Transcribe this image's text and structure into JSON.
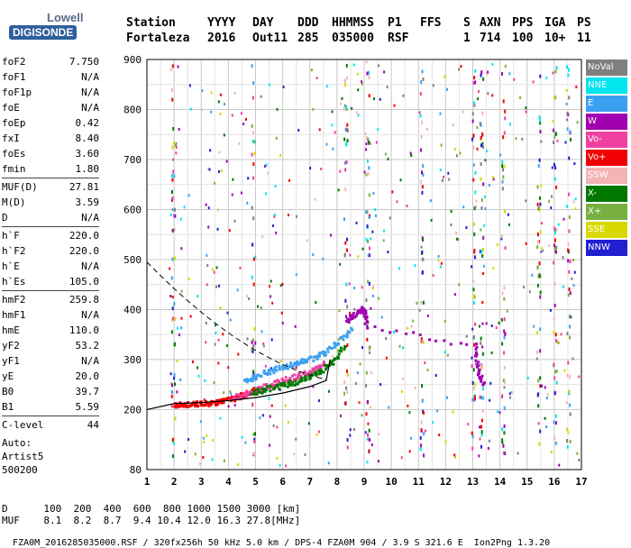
{
  "logo": {
    "line1": "Lowell",
    "line2": "DIGISONDE"
  },
  "header": {
    "labels": [
      "Station",
      "YYYY",
      "DAY",
      "DDD",
      "HHMMSS",
      "P1",
      "FFS",
      "S",
      "AXN",
      "PPS",
      "IGA",
      "PS"
    ],
    "values": [
      "Fortaleza",
      "2016",
      "Out11",
      "285",
      "035000",
      "RSF",
      "",
      "1",
      "714",
      "100",
      "10+",
      "11"
    ]
  },
  "params_groups": [
    [
      {
        "name": "foF2",
        "value": "7.750"
      },
      {
        "name": "foF1",
        "value": "N/A"
      },
      {
        "name": "foF1p",
        "value": "N/A"
      },
      {
        "name": "foE",
        "value": "N/A"
      },
      {
        "name": "foEp",
        "value": "0.42"
      },
      {
        "name": "fxI",
        "value": "8.40"
      },
      {
        "name": "foEs",
        "value": "3.60"
      },
      {
        "name": "fmin",
        "value": "1.80"
      }
    ],
    [
      {
        "name": "MUF(D)",
        "value": "27.81"
      },
      {
        "name": "M(D)",
        "value": "3.59"
      },
      {
        "name": "D",
        "value": "N/A"
      }
    ],
    [
      {
        "name": "h`F",
        "value": "220.0"
      },
      {
        "name": "h`F2",
        "value": "220.0"
      },
      {
        "name": "h`E",
        "value": "N/A"
      },
      {
        "name": "h`Es",
        "value": "105.0"
      }
    ],
    [
      {
        "name": "hmF2",
        "value": "259.8"
      },
      {
        "name": "hmF1",
        "value": "N/A"
      },
      {
        "name": "hmE",
        "value": "110.0"
      },
      {
        "name": "yF2",
        "value": "53.2"
      },
      {
        "name": "yF1",
        "value": "N/A"
      },
      {
        "name": "yE",
        "value": "20.0"
      },
      {
        "name": "B0",
        "value": "39.7"
      },
      {
        "name": "B1",
        "value": "5.59"
      }
    ],
    [
      {
        "name": "C-level",
        "value": "44"
      }
    ]
  ],
  "auto": {
    "line1": "Auto:",
    "line2": "Artist5",
    "line3": "500200"
  },
  "legend": [
    {
      "label": "NoVal",
      "color": "#7f7f7f"
    },
    {
      "label": "NNE",
      "color": "#00e5ee"
    },
    {
      "label": "E",
      "color": "#3ca0f0"
    },
    {
      "label": "W",
      "color": "#a000b0"
    },
    {
      "label": "Vo-",
      "color": "#f040a0"
    },
    {
      "label": "Vo+",
      "color": "#f00000"
    },
    {
      "label": "SSW",
      "color": "#f4b4b4"
    },
    {
      "label": "X-",
      "color": "#007800"
    },
    {
      "label": "X+",
      "color": "#78b040"
    },
    {
      "label": "SSE",
      "color": "#d8d800"
    },
    {
      "label": "NNW",
      "color": "#2020d0"
    }
  ],
  "bottom": {
    "d_label": "D",
    "d_values": [
      "100",
      "200",
      "400",
      "600",
      "800",
      "1000",
      "1500",
      "3000",
      "[km]"
    ],
    "muf_label": "MUF",
    "muf_values": [
      "8.1",
      "8.2",
      "8.7",
      "9.4",
      "10.4",
      "12.0",
      "16.3",
      "27.8",
      "[MHz]"
    ]
  },
  "footer": {
    "left": "FZA0M_2016285035000.RSF / 320fx256h 50 kHz 5.0 km / DPS-4 FZA0M 904 / 3.9 S 321.6 E",
    "right": "Ion2Png 1.3.20"
  },
  "chart_data": {
    "type": "scatter",
    "x_ticks": [
      1,
      2,
      3,
      4,
      5,
      6,
      7,
      8,
      9,
      10,
      11,
      12,
      13,
      14,
      15,
      16,
      17
    ],
    "y_ticks": [
      80,
      200,
      300,
      400,
      500,
      600,
      700,
      800,
      900
    ],
    "xlim": [
      1,
      17
    ],
    "ylim": [
      80,
      900
    ],
    "grid": true,
    "legend_position": "right",
    "traces": [
      {
        "name": "Vo+",
        "color": "#f00000",
        "points": [
          [
            1.9,
            212
          ],
          [
            2.3,
            212
          ],
          [
            2.7,
            213
          ],
          [
            3.1,
            214
          ],
          [
            3.5,
            217
          ],
          [
            3.9,
            222
          ],
          [
            4.3,
            228
          ],
          [
            4.7,
            236
          ],
          [
            5.1,
            245
          ]
        ]
      },
      {
        "name": "Vo-",
        "color": "#f040a0",
        "points": [
          [
            4.0,
            225
          ],
          [
            4.5,
            232
          ],
          [
            5.0,
            242
          ],
          [
            5.5,
            253
          ],
          [
            6.0,
            262
          ],
          [
            6.5,
            270
          ],
          [
            7.0,
            280
          ],
          [
            7.5,
            292
          ]
        ]
      },
      {
        "name": "X-",
        "color": "#007800",
        "points": [
          [
            4.8,
            235
          ],
          [
            5.3,
            243
          ],
          [
            5.8,
            250
          ],
          [
            6.3,
            256
          ],
          [
            6.8,
            264
          ],
          [
            7.3,
            278
          ],
          [
            7.8,
            300
          ],
          [
            8.2,
            330
          ]
        ]
      },
      {
        "name": "E",
        "color": "#3ca0f0",
        "points": [
          [
            4.5,
            260
          ],
          [
            5.0,
            270
          ],
          [
            5.5,
            280
          ],
          [
            6.0,
            288
          ],
          [
            6.5,
            296
          ],
          [
            7.0,
            305
          ],
          [
            7.5,
            315
          ],
          [
            8.0,
            340
          ],
          [
            8.5,
            365
          ]
        ]
      },
      {
        "name": "W",
        "color": "#a000b0",
        "points": [
          [
            8.3,
            380
          ],
          [
            8.6,
            395
          ],
          [
            8.9,
            405
          ],
          [
            9.0,
            370
          ],
          [
            13.0,
            330
          ],
          [
            13.1,
            280
          ],
          [
            13.3,
            250
          ]
        ]
      }
    ],
    "model_curve": [
      [
        1.0,
        200
      ],
      [
        2.0,
        212
      ],
      [
        3.0,
        214
      ],
      [
        4.0,
        218
      ],
      [
        5.0,
        224
      ],
      [
        6.0,
        233
      ],
      [
        7.0,
        246
      ],
      [
        7.6,
        258
      ],
      [
        7.75,
        300
      ]
    ]
  }
}
